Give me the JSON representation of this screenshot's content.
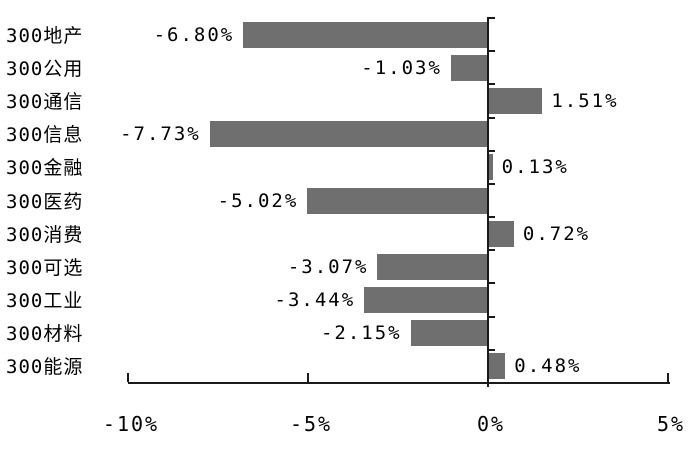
{
  "chart_data": {
    "type": "bar",
    "orientation": "horizontal",
    "title": "",
    "xlabel": "",
    "ylabel": "",
    "grid": false,
    "legend": null,
    "categories": [
      "300地产",
      "300公用",
      "300通信",
      "300信息",
      "300金融",
      "300医药",
      "300消费",
      "300可选",
      "300工业",
      "300材料",
      "300能源"
    ],
    "values": [
      -6.8,
      -1.03,
      1.51,
      -7.73,
      0.13,
      -5.02,
      0.72,
      -3.07,
      -3.44,
      -2.15,
      0.48
    ],
    "value_labels": [
      "-6.80%",
      "-1.03%",
      "1.51%",
      "-7.73%",
      "0.13%",
      "-5.02%",
      "0.72%",
      "-3.07%",
      "-3.44%",
      "-2.15%",
      "0.48%"
    ],
    "xlim": [
      -10,
      5
    ],
    "x_ticks": [
      -10,
      -5,
      0,
      5
    ],
    "x_tick_labels": [
      "-10%",
      "-5%",
      "0%",
      "5%"
    ],
    "colors": {
      "bar": "#6f6f6f",
      "axis": "#1a1a1a",
      "text": "#000000",
      "background": "#ffffff"
    }
  }
}
